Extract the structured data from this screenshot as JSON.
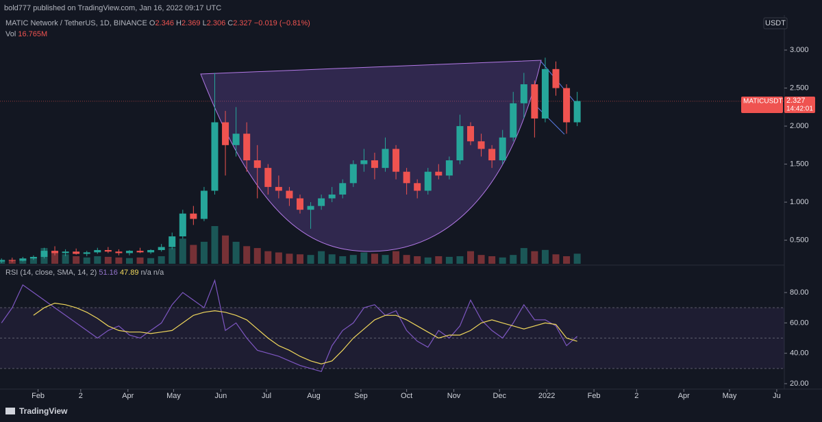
{
  "header": {
    "published": "bold777 published on TradingView.com, Jan 16, 2022 09:17 UTC"
  },
  "legend": {
    "symbol": "MATIC Network / TetherUS, 1D, BINANCE",
    "ohlc": [
      {
        "label": "O",
        "value": "2.346"
      },
      {
        "label": "H",
        "value": "2.369"
      },
      {
        "label": "L",
        "value": "2.306"
      },
      {
        "label": "C",
        "value": "2.327"
      }
    ],
    "change": "−0.019 (−0.81%)",
    "vol_label": "Vol",
    "vol_value": "16.765M"
  },
  "price_scale_unit": "USDT",
  "price_tag": {
    "symbol": "MATICUSDT",
    "price": "2.327",
    "countdown": "14:42:01"
  },
  "rsi_legend": {
    "title": "RSI (14, close, SMA, 14, 2)",
    "values": [
      "51.16",
      "47.89",
      "n/a",
      "n/a"
    ]
  },
  "footer": "TradingView",
  "chart_data": [
    {
      "type": "candlestick",
      "up_color": "#26a69a",
      "down_color": "#ef5350",
      "x": [
        7,
        14,
        21,
        28,
        35,
        42,
        49,
        56,
        63,
        70,
        77,
        84,
        91,
        98,
        105,
        112,
        119,
        126,
        133,
        140,
        147,
        154,
        161,
        168,
        175,
        182,
        189,
        196,
        203,
        210,
        217,
        224,
        231,
        238,
        245,
        252,
        259,
        266,
        273,
        280,
        287,
        294,
        301,
        308,
        315,
        322,
        329,
        336,
        343,
        350,
        357,
        364,
        371,
        378,
        385
      ],
      "open": [
        0.22,
        0.24,
        0.23,
        0.26,
        0.28,
        0.36,
        0.33,
        0.35,
        0.32,
        0.34,
        0.37,
        0.35,
        0.33,
        0.36,
        0.34,
        0.37,
        0.41,
        0.55,
        0.85,
        0.78,
        1.15,
        2.05,
        1.75,
        1.9,
        1.55,
        1.45,
        1.2,
        1.15,
        1.05,
        0.9,
        0.95,
        1.05,
        1.1,
        1.25,
        1.5,
        1.55,
        1.45,
        1.7,
        1.4,
        1.25,
        1.15,
        1.4,
        1.35,
        1.55,
        2.0,
        1.8,
        1.7,
        1.55,
        1.85,
        2.3,
        2.55,
        2.1,
        2.75,
        2.5,
        2.05
      ],
      "high": [
        0.26,
        0.27,
        0.28,
        0.3,
        0.4,
        0.42,
        0.38,
        0.39,
        0.36,
        0.4,
        0.41,
        0.38,
        0.37,
        0.4,
        0.38,
        0.45,
        0.6,
        0.9,
        0.95,
        1.2,
        2.7,
        2.2,
        2.25,
        2.05,
        1.75,
        1.5,
        1.35,
        1.2,
        1.1,
        1.0,
        1.1,
        1.2,
        1.3,
        1.55,
        1.7,
        1.65,
        1.85,
        1.75,
        1.45,
        1.3,
        1.45,
        1.5,
        1.6,
        2.15,
        2.05,
        1.9,
        1.75,
        1.95,
        2.45,
        2.7,
        2.6,
        2.9,
        2.85,
        2.55,
        2.45
      ],
      "low": [
        0.2,
        0.21,
        0.22,
        0.24,
        0.26,
        0.3,
        0.29,
        0.31,
        0.29,
        0.32,
        0.33,
        0.3,
        0.3,
        0.33,
        0.32,
        0.35,
        0.38,
        0.52,
        0.7,
        0.75,
        1.1,
        1.35,
        1.6,
        1.4,
        1.05,
        1.1,
        1.05,
        0.95,
        0.85,
        0.65,
        0.9,
        1.0,
        1.05,
        1.2,
        1.4,
        1.3,
        1.4,
        1.3,
        1.1,
        1.05,
        1.1,
        1.3,
        1.3,
        1.5,
        1.75,
        1.6,
        1.45,
        1.5,
        1.8,
        2.1,
        1.85,
        2.05,
        2.4,
        1.9,
        2.0
      ],
      "close": [
        0.24,
        0.23,
        0.26,
        0.28,
        0.36,
        0.33,
        0.35,
        0.32,
        0.34,
        0.37,
        0.35,
        0.33,
        0.36,
        0.34,
        0.37,
        0.41,
        0.55,
        0.85,
        0.78,
        1.15,
        2.05,
        1.75,
        1.9,
        1.55,
        1.45,
        1.2,
        1.15,
        1.05,
        0.9,
        0.95,
        1.05,
        1.1,
        1.25,
        1.5,
        1.55,
        1.45,
        1.7,
        1.4,
        1.25,
        1.15,
        1.4,
        1.35,
        1.55,
        2.0,
        1.8,
        1.7,
        1.55,
        1.85,
        2.3,
        2.55,
        2.1,
        2.75,
        2.5,
        2.05,
        2.33
      ],
      "volume": [
        5,
        6,
        8,
        10,
        25,
        20,
        15,
        12,
        10,
        12,
        11,
        10,
        9,
        10,
        9,
        12,
        25,
        40,
        30,
        35,
        60,
        45,
        35,
        28,
        25,
        20,
        18,
        16,
        15,
        14,
        20,
        15,
        12,
        14,
        18,
        16,
        14,
        20,
        14,
        12,
        10,
        12,
        11,
        12,
        20,
        14,
        12,
        10,
        14,
        25,
        20,
        22,
        15,
        12,
        16
      ],
      "xlim": [
        6,
        521
      ],
      "xticks": [
        {
          "value": 31,
          "label": "Feb"
        },
        {
          "value": 59,
          "label": "2"
        },
        {
          "value": 90,
          "label": "Apr"
        },
        {
          "value": 120,
          "label": "May"
        },
        {
          "value": 151,
          "label": "Jun"
        },
        {
          "value": 181,
          "label": "Jul"
        },
        {
          "value": 212,
          "label": "Aug"
        },
        {
          "value": 243,
          "label": "Sep"
        },
        {
          "value": 273,
          "label": "Oct"
        },
        {
          "value": 304,
          "label": "Nov"
        },
        {
          "value": 334,
          "label": "Dec"
        },
        {
          "value": 365,
          "label": "2022"
        },
        {
          "value": 396,
          "label": "Feb"
        },
        {
          "value": 424,
          "label": "2"
        },
        {
          "value": 455,
          "label": "Apr"
        },
        {
          "value": 485,
          "label": "May"
        },
        {
          "value": 516,
          "label": "Ju"
        }
      ],
      "ylim": [
        0.19,
        3.46
      ],
      "yticks": [
        {
          "value": 0.5,
          "label": "0.500"
        },
        {
          "value": 1,
          "label": "1.000"
        },
        {
          "value": 1.5,
          "label": "1.500"
        },
        {
          "value": 2,
          "label": "2.000"
        },
        {
          "value": 2.5,
          "label": "2.500"
        },
        {
          "value": 3,
          "label": "3.000"
        }
      ],
      "last_price": 2.327,
      "last_price_color": "#ef5350"
    },
    {
      "type": "line",
      "x": [
        7,
        14,
        21,
        28,
        35,
        42,
        49,
        56,
        63,
        70,
        77,
        84,
        91,
        98,
        105,
        112,
        119,
        126,
        133,
        140,
        147,
        154,
        161,
        168,
        175,
        182,
        189,
        196,
        203,
        210,
        217,
        224,
        231,
        238,
        245,
        252,
        259,
        266,
        273,
        280,
        287,
        294,
        301,
        308,
        315,
        322,
        329,
        336,
        343,
        350,
        357,
        364,
        371,
        378,
        385
      ],
      "series": [
        {
          "color": "#7e57c2",
          "values": [
            60,
            70,
            85,
            80,
            75,
            70,
            65,
            60,
            55,
            50,
            55,
            58,
            52,
            50,
            55,
            60,
            72,
            80,
            75,
            70,
            88,
            55,
            60,
            50,
            42,
            40,
            38,
            35,
            32,
            30,
            28,
            45,
            55,
            60,
            70,
            72,
            65,
            68,
            55,
            48,
            44,
            55,
            50,
            58,
            75,
            62,
            55,
            50,
            60,
            72,
            62,
            62,
            58,
            45,
            51.16
          ]
        },
        {
          "color": "#f0d75c",
          "values": [
            null,
            null,
            null,
            65,
            70,
            73,
            72,
            70,
            67,
            63,
            58,
            55,
            54,
            54,
            53,
            54,
            55,
            60,
            65,
            67,
            68,
            67,
            65,
            62,
            56,
            50,
            45,
            42,
            38,
            35,
            33,
            35,
            42,
            50,
            56,
            62,
            65,
            65,
            62,
            58,
            54,
            50,
            52,
            52,
            55,
            60,
            62,
            60,
            58,
            56,
            58,
            60,
            59,
            50,
            47.89
          ]
        }
      ],
      "xlim": [
        6,
        521
      ],
      "ylim": [
        16.4,
        96.7
      ],
      "yticks": [
        {
          "value": 20,
          "label": "20.00"
        },
        {
          "value": 40,
          "label": "40.00"
        },
        {
          "value": 60,
          "label": "60.00"
        },
        {
          "value": 80,
          "label": "80.00"
        }
      ],
      "hlines": [
        30,
        50,
        70
      ],
      "band_color": "#7e57c2"
    }
  ]
}
